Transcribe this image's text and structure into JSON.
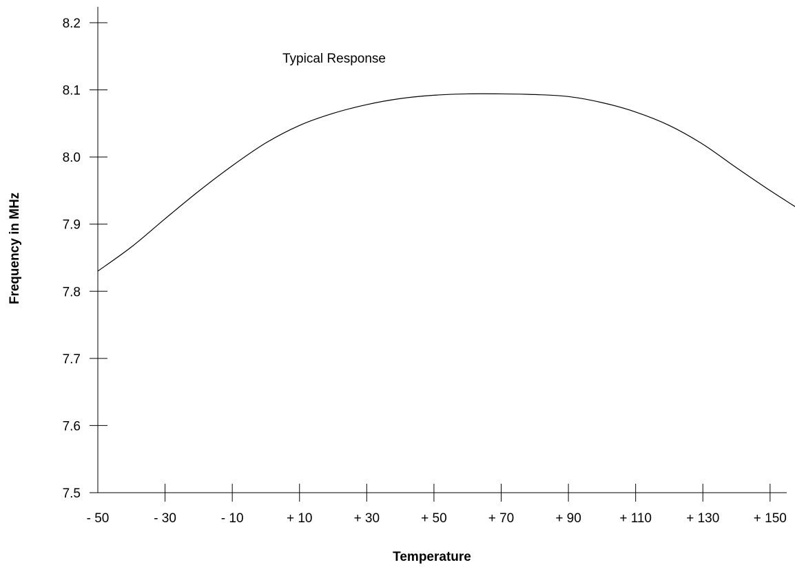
{
  "chart_data": {
    "type": "line",
    "title": "",
    "annotation": "Typical Response",
    "xlabel": "Temperature",
    "ylabel": "Frequency in MHz",
    "xlim": [
      -50,
      160
    ],
    "ylim": [
      7.5,
      8.2
    ],
    "x_tick_values": [
      -50,
      -30,
      -10,
      10,
      30,
      50,
      70,
      90,
      110,
      130,
      150
    ],
    "x_tick_labels": [
      "- 50",
      "- 30",
      "- 10",
      "+ 10",
      "+ 30",
      "+ 50",
      "+ 70",
      "+ 90",
      "+ 110",
      "+ 130",
      "+ 150"
    ],
    "y_tick_values": [
      7.5,
      7.6,
      7.7,
      7.8,
      7.9,
      8.0,
      8.1,
      8.2
    ],
    "y_tick_labels": [
      "7.5",
      "7.6",
      "7.7",
      "7.8",
      "7.9",
      "8.0",
      "8.1",
      "8.2"
    ],
    "grid": false,
    "legend": "none",
    "line_color": "#000000",
    "series": [
      {
        "x": [
          -50,
          -40,
          -30,
          -20,
          -10,
          0,
          10,
          20,
          30,
          40,
          50,
          60,
          70,
          80,
          90,
          100,
          110,
          120,
          130,
          140,
          150,
          160
        ],
        "y": [
          7.83,
          7.866,
          7.908,
          7.949,
          7.987,
          8.021,
          8.047,
          8.065,
          8.078,
          8.087,
          8.092,
          8.094,
          8.094,
          8.093,
          8.09,
          8.081,
          8.067,
          8.047,
          8.019,
          7.984,
          7.95,
          7.918
        ]
      }
    ]
  }
}
